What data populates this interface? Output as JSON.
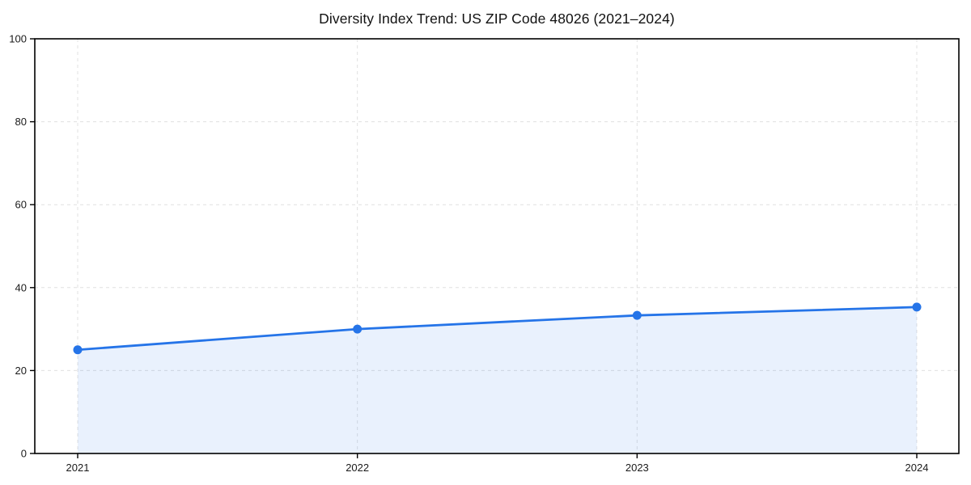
{
  "page": {
    "background": "#ffffff"
  },
  "chart_data": {
    "type": "area",
    "title": "Diversity Index Trend: US ZIP Code 48026 (2021–2024)",
    "x": [
      2021,
      2022,
      2023,
      2024
    ],
    "categories": [
      "2021",
      "2022",
      "2023",
      "2024"
    ],
    "series": [
      {
        "name": "Diversity Index",
        "values": [
          25,
          30,
          33.3,
          35.3
        ]
      }
    ],
    "xlabel": "",
    "ylabel": "",
    "ylim": [
      0,
      100
    ],
    "yticks": [
      0,
      20,
      40,
      60,
      80,
      100
    ],
    "ytick_labels": [
      "0",
      "20",
      "40",
      "60",
      "80",
      "100"
    ],
    "grid": true,
    "grid_style": "dashed",
    "legend_position": "none",
    "marker": "circle",
    "colors": {
      "line": "#2574e8",
      "marker": "#2574e8",
      "area_fill": "rgba(37,116,232,0.10)",
      "grid": "#e0e0e0",
      "axis": "#000000",
      "tick_text": "#1a1a1a",
      "title_text": "#111111"
    }
  }
}
